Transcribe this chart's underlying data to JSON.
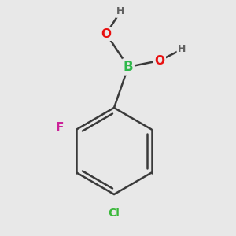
{
  "background_color": "#e8e8e8",
  "bond_color": "#3a3a3a",
  "bond_width": 1.8,
  "atom_colors": {
    "B": "#2db84a",
    "O": "#e81010",
    "H": "#606060",
    "F": "#cc2299",
    "Cl": "#3ab83a",
    "C": "#3a3a3a"
  },
  "font_size_main": 11,
  "font_size_h": 9,
  "font_size_cl": 10
}
